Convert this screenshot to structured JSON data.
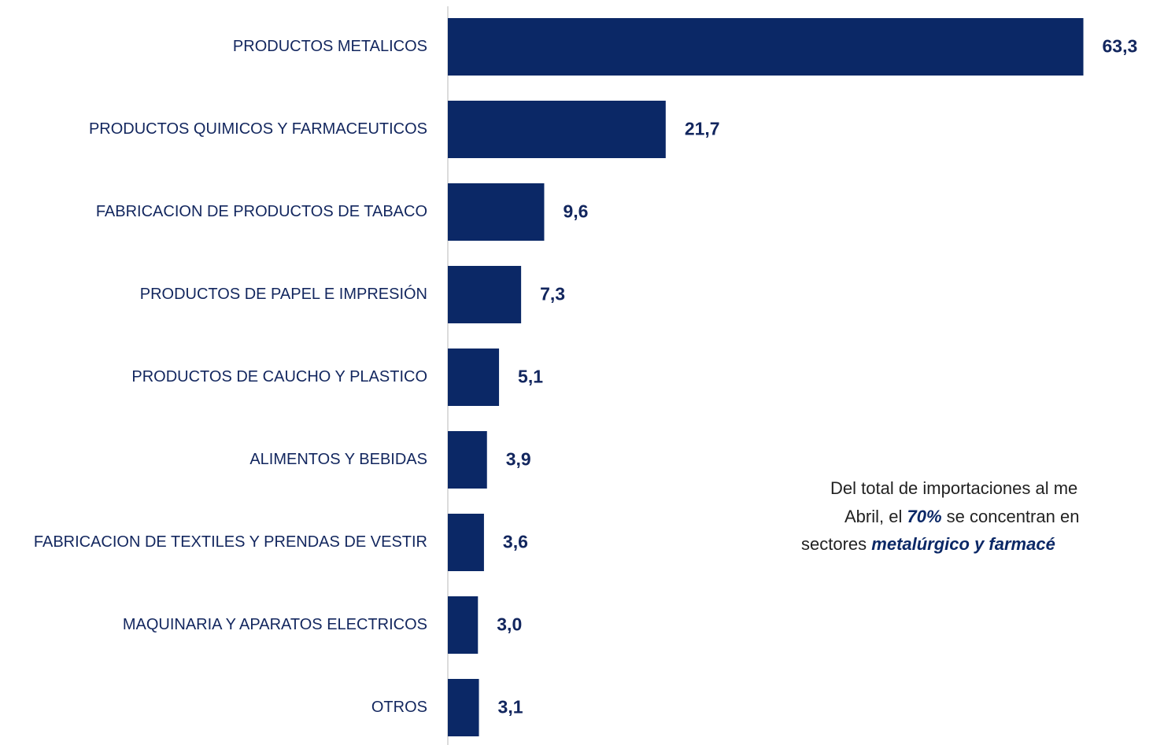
{
  "chart_data": {
    "type": "bar",
    "orientation": "horizontal",
    "categories": [
      "PRODUCTOS METALICOS",
      "PRODUCTOS QUIMICOS Y FARMACEUTICOS",
      "FABRICACION DE PRODUCTOS DE TABACO",
      "PRODUCTOS DE PAPEL E IMPRESIÓN",
      "PRODUCTOS DE CAUCHO Y PLASTICO",
      "ALIMENTOS Y BEBIDAS",
      "FABRICACION DE TEXTILES Y PRENDAS DE VESTIR",
      "MAQUINARIA Y APARATOS ELECTRICOS",
      "OTROS"
    ],
    "values": [
      63.3,
      21.7,
      9.6,
      7.3,
      5.1,
      3.9,
      3.6,
      3.0,
      3.1
    ],
    "value_labels": [
      "63,3",
      "21,7",
      "9,6",
      "7,3",
      "5,1",
      "3,9",
      "3,6",
      "3,0",
      "3,1"
    ],
    "color": "#0b2866",
    "xlim": [
      0,
      70
    ],
    "annotation": {
      "lines": [
        [
          "Del total de importaciones al me"
        ],
        [
          "Abril, el ",
          "70%",
          " se concentran en"
        ],
        [
          "sectores ",
          "metalúrgico y farmacé"
        ]
      ]
    }
  }
}
